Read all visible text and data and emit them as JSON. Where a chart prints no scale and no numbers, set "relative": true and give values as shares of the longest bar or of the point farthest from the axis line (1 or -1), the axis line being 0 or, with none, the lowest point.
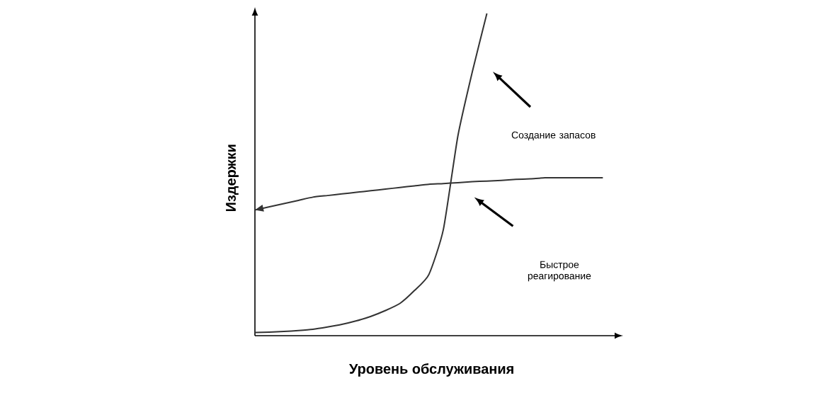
{
  "chart_data": {
    "type": "line",
    "xlabel": "Уровень обслуживания",
    "ylabel": "Издержки",
    "relative": true,
    "categories": [
      null,
      null,
      null,
      null,
      null,
      null,
      null,
      null,
      null,
      null,
      null,
      null,
      null,
      null,
      null,
      null,
      null,
      null,
      null,
      null,
      null,
      null,
      null,
      null,
      null
    ],
    "series": [
      {
        "color": "#333333",
        "values": [
          0.01,
          0.011,
          0.013,
          0.016,
          0.02,
          0.027,
          0.035,
          0.046,
          0.06,
          0.078,
          0.1,
          0.14,
          0.19,
          0.33,
          0.62,
          0.82,
          1.0,
          null,
          null,
          null,
          null,
          null,
          null,
          null,
          null
        ]
      },
      {
        "color": "#333333",
        "values": [
          0.39,
          0.4,
          0.41,
          0.42,
          0.43,
          0.435,
          0.44,
          0.445,
          0.45,
          0.455,
          0.46,
          0.465,
          0.47,
          0.472,
          0.475,
          0.478,
          0.48,
          0.482,
          0.485,
          0.487,
          0.49,
          0.49,
          0.49,
          0.49,
          0.49
        ]
      }
    ],
    "annotations": [
      "Создание запасов",
      "Быстрое реагирование"
    ],
    "marker": "none",
    "line_style": "solid"
  }
}
